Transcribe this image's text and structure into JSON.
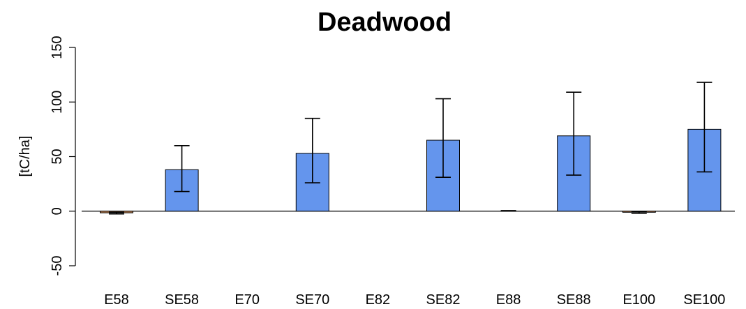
{
  "chart_data": {
    "type": "bar",
    "title": "Deadwood",
    "xlabel": "",
    "ylabel": "[tC/ha]",
    "ylim": [
      -50,
      150
    ],
    "yticks": [
      -50,
      0,
      50,
      100,
      150
    ],
    "grid": false,
    "categories": [
      "E58",
      "SE58",
      "E70",
      "SE70",
      "E82",
      "SE82",
      "E88",
      "SE88",
      "E100",
      "SE100"
    ],
    "values": [
      -1.5,
      38,
      0,
      53,
      0,
      65,
      0,
      69,
      -1,
      75
    ],
    "error_low": [
      -2.5,
      18,
      0,
      26,
      0,
      31,
      0,
      33,
      -2,
      36
    ],
    "error_high": [
      -1,
      60,
      0,
      85,
      0,
      103,
      0.5,
      109,
      -0.5,
      118
    ],
    "colors": {
      "bar_fill": "#6495ED",
      "bar_fill_negative": "#CD8C5C",
      "bar_stroke": "#000000"
    }
  }
}
